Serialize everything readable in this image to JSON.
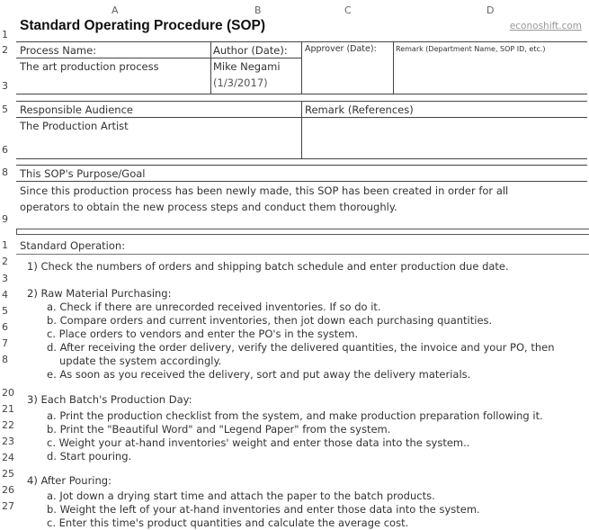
{
  "columns": [
    "A",
    "B",
    "C",
    "D"
  ],
  "title": "Standard Operating Procedure (SOP)",
  "brand": "econoshift.com",
  "header": {
    "process_name_label": "Process Name:",
    "author_label": "Author (Date):",
    "approver_label": "Approver (Date):",
    "remark_label": "Remark (Department Name, SOP ID, etc.)",
    "process_name": "The art production process",
    "author": "Mike Negami",
    "author_date": "(1/3/2017)"
  },
  "audience": {
    "label": "Responsible Audience",
    "value": "The Production Artist",
    "remark_label": "Remark (References)"
  },
  "purpose": {
    "label": "This SOP's Purpose/Goal",
    "line1": "Since this production process has been newly made, this SOP has been created in order for all",
    "line2": "operators to obtain the new process steps and conduct them thoroughly."
  },
  "operation": {
    "label": "Standard Operation:",
    "step1": "1) Check the numbers of orders and shipping batch schedule and enter production due date.",
    "step2": "2) Raw Material Purchasing:",
    "step2_items": [
      "a. Check if there are unrecorded received inventories.  If so do it.",
      "b. Compare orders and current inventories, then jot down each purchasing quantities.",
      "c. Place orders to vendors and enter the PO's in the system.",
      "d. After receiving the order delivery, verify the delivered quantities, the invoice and your PO, then",
      "update the system accordingly.",
      "e. As soon as you received the delivery, sort and put away the delivery materials."
    ],
    "step3": "3) Each Batch's Production Day:",
    "step3_items": [
      "a. Print the production checklist from the system, and make production preparation following it.",
      "b. Print the \"Beautiful Word\" and \"Legend Paper\" from the system.",
      "c. Weight your at-hand inventories' weight and enter those data into the system..",
      "d. Start pouring."
    ],
    "step4": "4) After Pouring:",
    "step4_items": [
      "a. Jot down a drying start time and attach the paper to the batch products.",
      "b. Weight the left of your at-hand inventories and enter those data into the system.",
      "c. Enter this time's product quantities and calculate the average cost."
    ]
  },
  "row_numbers": [
    "1",
    "2",
    "3",
    "5",
    "6",
    "8",
    "9",
    "1",
    "2",
    "3",
    "4",
    "5",
    "6",
    "7",
    "8",
    "20",
    "21",
    "22",
    "23",
    "24",
    "25",
    "26",
    "27"
  ]
}
